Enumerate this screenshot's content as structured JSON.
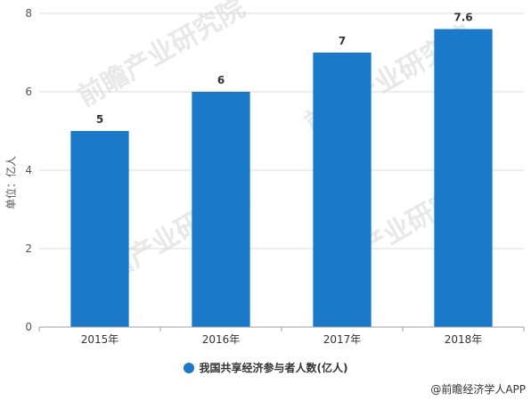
{
  "chart_data": {
    "type": "bar",
    "categories": [
      "2015年",
      "2016年",
      "2017年",
      "2018年"
    ],
    "series": [
      {
        "name": "我国共享经济参与者人数(亿人)",
        "values": [
          5,
          6,
          7,
          7.6
        ]
      }
    ],
    "data_labels": [
      "5",
      "6",
      "7",
      "7.6"
    ],
    "ylabel": "单位：亿人",
    "ylim": [
      0,
      8
    ],
    "yticks": [
      "0",
      "2",
      "4",
      "6",
      "8"
    ],
    "grid": true,
    "legend_position": "bottom",
    "bar_color": "#1a7ac9"
  },
  "watermark": "前瞻产业研究院",
  "source": "@前瞻经济学人APP"
}
